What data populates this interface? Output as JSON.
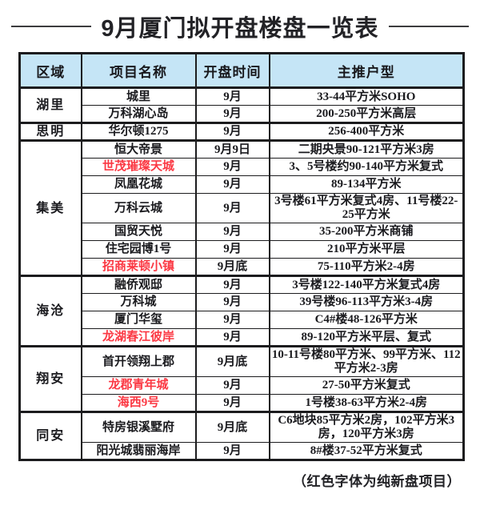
{
  "title": "9月厦门拟开盘楼盘一览表",
  "footnote": "（红色字体为纯新盘项目）",
  "colors": {
    "header_bg": "#c5e5f6",
    "new_project_red": "#fb3843",
    "border": "#1c1c1e",
    "text": "#1a1a1e"
  },
  "legend_note": "red text marks brand-new projects",
  "table": {
    "headers": [
      "区域",
      "项目名称",
      "开盘时间",
      "主推户型"
    ],
    "groups": [
      {
        "region": "湖里",
        "rows": [
          {
            "name": "城里",
            "time": "9月",
            "type": "33-44平方米SOHO",
            "red": false
          },
          {
            "name": "万科湖心岛",
            "time": "9月",
            "type": "200-250平方米高层",
            "red": false
          }
        ]
      },
      {
        "region": "思明",
        "rows": [
          {
            "name": "华尔顿1275",
            "time": "9月",
            "type": "256-400平方米",
            "red": false
          }
        ]
      },
      {
        "region": "集美",
        "rows": [
          {
            "name": "恒大帝景",
            "time": "9月9日",
            "type": "二期央景90-121平方米3房",
            "red": false
          },
          {
            "name": "世茂璀璨天城",
            "time": "9月",
            "type": "3、5号楼约90-140平方米复式",
            "red": true
          },
          {
            "name": "凤凰花城",
            "time": "9月",
            "type": "89-134平方米",
            "red": false
          },
          {
            "name": "万科云城",
            "time": "9月",
            "type": "3号楼61平方米复式4房、11号楼22-25平方米",
            "red": false
          },
          {
            "name": "国贸天悦",
            "time": "9月",
            "type": "35-200平方米商铺",
            "red": false
          },
          {
            "name": "住宅园博1号",
            "time": "9月",
            "type": "210平方米平层",
            "red": false
          },
          {
            "name": "招商莱顿小镇",
            "time": "9月底",
            "type": "75-110平方米2-4房",
            "red": true
          }
        ]
      },
      {
        "region": "海沧",
        "rows": [
          {
            "name": "融侨观邸",
            "time": "9月",
            "type": "3号楼122-140平方米复式4房",
            "red": false
          },
          {
            "name": "万科城",
            "time": "9月",
            "type": "39号楼96-113平方米3-4房",
            "red": false
          },
          {
            "name": "厦门华玺",
            "time": "9月",
            "type": "C4#楼48-126平方米",
            "red": false
          },
          {
            "name": "龙湖春江彼岸",
            "time": "9月",
            "type": "89-120平方米平层、复式",
            "red": true
          }
        ]
      },
      {
        "region": "翔安",
        "rows": [
          {
            "name": "首开领翔上郡",
            "time": "9月底",
            "type": "10-11号楼80平方米、99平方米、112平方米2-3房",
            "red": false
          },
          {
            "name": "龙郡青年城",
            "time": "9月",
            "type": "27-50平方米复式",
            "red": true
          },
          {
            "name": "海西9号",
            "time": "9月",
            "type": "1号楼38-63平方米2-4房",
            "red": true
          }
        ]
      },
      {
        "region": "同安",
        "rows": [
          {
            "name": "特房银溪墅府",
            "time": "9月底",
            "type": "C6地块85平方米2房，102平方米3房，120平方米3房",
            "red": false
          },
          {
            "name": "阳光城翡丽海岸",
            "time": "9月",
            "type": "8#楼37-52平方米复式",
            "red": false
          }
        ]
      }
    ]
  }
}
